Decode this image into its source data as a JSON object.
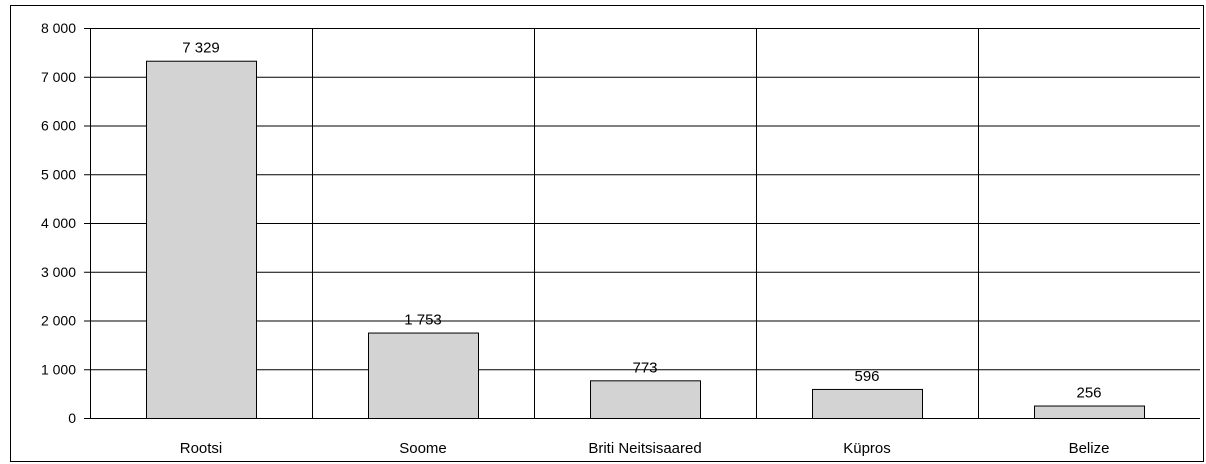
{
  "chart_data": {
    "type": "bar",
    "categories": [
      "Rootsi",
      "Soome",
      "Briti Neitsisaared",
      "Küpros",
      "Belize"
    ],
    "values": [
      7329,
      1753,
      773,
      596,
      256
    ],
    "value_labels": [
      "7 329",
      "1 753",
      "773",
      "596",
      "256"
    ],
    "ylim": [
      0,
      8000
    ],
    "y_ticks": [
      0,
      1000,
      2000,
      3000,
      4000,
      5000,
      6000,
      7000,
      8000
    ],
    "y_tick_labels": [
      "0",
      "1 000",
      "2 000",
      "3 000",
      "4 000",
      "5 000",
      "6 000",
      "7 000",
      "8 000"
    ],
    "title": "",
    "xlabel": "",
    "ylabel": "",
    "grid": true,
    "bar_color": "#d3d3d3",
    "bar_edge_color": "#000000"
  }
}
